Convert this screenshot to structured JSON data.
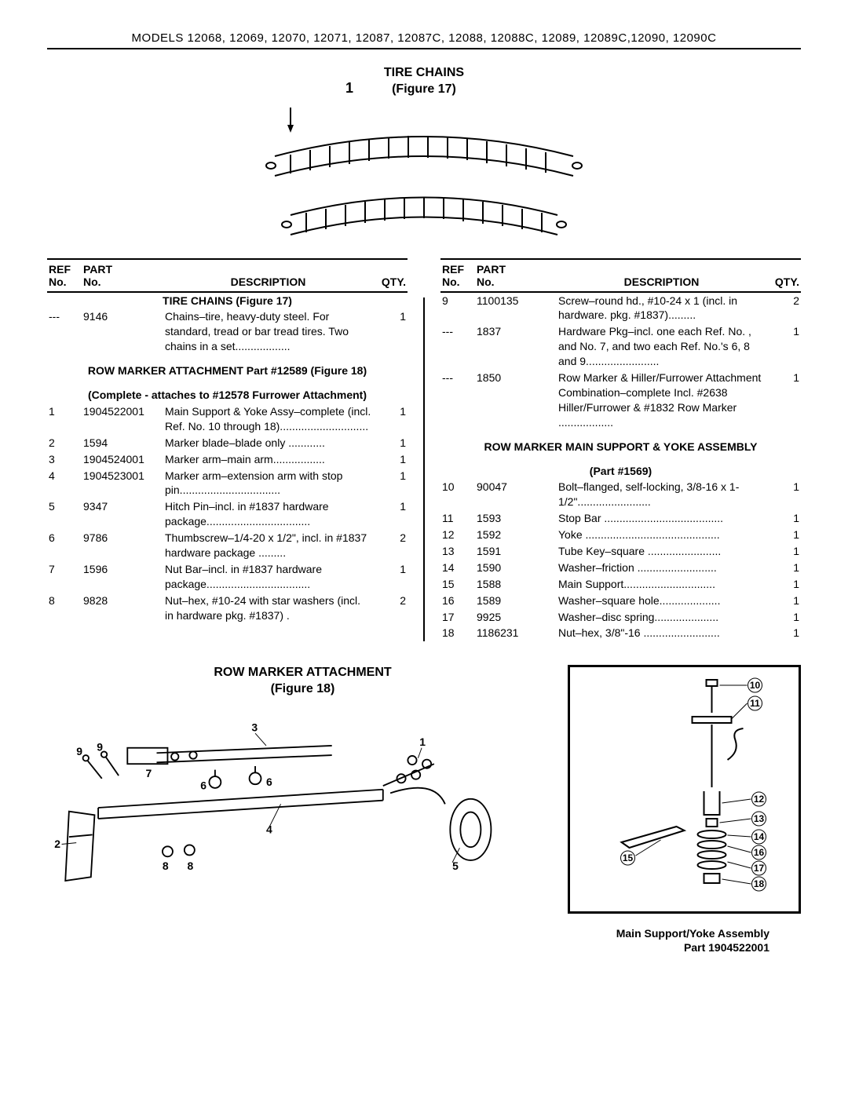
{
  "header": "MODELS 12068, 12069, 12070, 12071, 12087, 12087C, 12088, 12088C, 12089, 12089C,12090, 12090C",
  "figure17": {
    "title_line1": "TIRE CHAINS",
    "title_line2": "(Figure 17)",
    "callout": "1"
  },
  "table_headers": {
    "ref1": "REF",
    "ref2": "No.",
    "part1": "PART",
    "part2": "No.",
    "desc": "DESCRIPTION",
    "qty": "QTY."
  },
  "left_sections": [
    {
      "type": "section",
      "text": "TIRE CHAINS (Figure 17)"
    },
    {
      "ref": "---",
      "part": "9146",
      "desc": "Chains–tire, heavy-duty steel. For standard, tread or bar tread tires. Two chains in a set..................",
      "qty": "1"
    },
    {
      "type": "section",
      "text": "ROW MARKER ATTACHMENT Part #12589 (Figure 18)"
    },
    {
      "type": "section",
      "text": "(Complete - attaches to #12578 Furrower Attachment)"
    },
    {
      "ref": "1",
      "part": "1904522001",
      "desc": "Main Support & Yoke Assy–complete (incl. Ref. No. 10 through 18).............................",
      "qty": "1"
    },
    {
      "ref": "2",
      "part": "1594",
      "desc": "Marker blade–blade only ............",
      "qty": "1"
    },
    {
      "ref": "3",
      "part": "1904524001",
      "desc": "Marker arm–main arm.................",
      "qty": "1"
    },
    {
      "ref": "4",
      "part": "1904523001",
      "desc": "Marker arm–extension arm with stop pin.................................",
      "qty": "1"
    },
    {
      "ref": "5",
      "part": "9347",
      "desc": "Hitch Pin–incl. in #1837 hardware package..................................",
      "qty": "1"
    },
    {
      "ref": "6",
      "part": "9786",
      "desc": "Thumbscrew–1/4-20 x 1/2\", incl. in #1837 hardware package .........",
      "qty": "2"
    },
    {
      "ref": "7",
      "part": "1596",
      "desc": "Nut Bar–incl. in #1837 hardware package..................................",
      "qty": "1"
    },
    {
      "ref": "8",
      "part": "9828",
      "desc": "Nut–hex, #10-24 with star washers (incl. in hardware pkg. #1837) .",
      "qty": "2"
    }
  ],
  "right_sections": [
    {
      "ref": "9",
      "part": "1100135",
      "desc": "Screw–round hd., #10-24 x 1 (incl. in hardware. pkg. #1837).........",
      "qty": "2"
    },
    {
      "ref": "---",
      "part": "1837",
      "desc": "Hardware Pkg–incl. one each Ref. No. , and No. 7, and two each Ref. No.'s 6, 8 and 9........................",
      "qty": "1"
    },
    {
      "ref": "---",
      "part": "1850",
      "desc": "Row Marker & Hiller/Furrower Attachment Combination–complete Incl. #2638 Hiller/Furrower & #1832 Row Marker ..................",
      "qty": "1"
    },
    {
      "type": "section",
      "text": "ROW MARKER MAIN SUPPORT & YOKE ASSEMBLY"
    },
    {
      "type": "section",
      "text": "(Part #1569)"
    },
    {
      "ref": "10",
      "part": "90047",
      "desc": "Bolt–flanged, self-locking, 3/8-16 x 1-1/2\"........................",
      "qty": "1"
    },
    {
      "ref": "11",
      "part": "1593",
      "desc": "Stop Bar .......................................",
      "qty": "1"
    },
    {
      "ref": "12",
      "part": "1592",
      "desc": "Yoke ............................................",
      "qty": "1"
    },
    {
      "ref": "13",
      "part": "1591",
      "desc": "Tube Key–square ........................",
      "qty": "1"
    },
    {
      "ref": "14",
      "part": "1590",
      "desc": "Washer–friction ..........................",
      "qty": "1"
    },
    {
      "ref": "15",
      "part": "1588",
      "desc": "Main Support..............................",
      "qty": "1"
    },
    {
      "ref": "16",
      "part": "1589",
      "desc": "Washer–square hole....................",
      "qty": "1"
    },
    {
      "ref": "17",
      "part": "9925",
      "desc": "Washer–disc spring.....................",
      "qty": "1"
    },
    {
      "ref": "18",
      "part": "1186231",
      "desc": "Nut–hex, 3/8\"-16 .........................",
      "qty": "1"
    }
  ],
  "figure18": {
    "title_line1": "ROW MARKER ATTACHMENT",
    "title_line2": "(Figure 18)",
    "callouts": [
      "1",
      "2",
      "3",
      "4",
      "5",
      "6",
      "6",
      "7",
      "8",
      "8",
      "9",
      "9"
    ]
  },
  "side_figure": {
    "callouts": [
      "10",
      "11",
      "12",
      "13",
      "14",
      "15",
      "16",
      "17",
      "18"
    ],
    "caption_line1": "Main Support/Yoke Assembly",
    "caption_line2": "Part 1904522001"
  }
}
